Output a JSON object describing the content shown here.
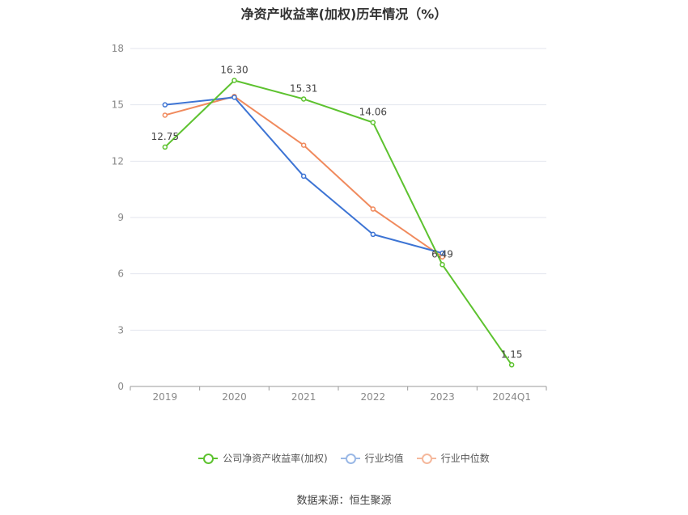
{
  "chart_data": {
    "type": "line",
    "title": "净资产收益率(加权)历年情况（%）",
    "categories": [
      "2019",
      "2020",
      "2021",
      "2022",
      "2023",
      "2024Q1"
    ],
    "ylim": [
      0,
      18
    ],
    "yticks": [
      "0",
      "3",
      "6",
      "9",
      "12",
      "15",
      "18"
    ],
    "grid": true,
    "legend_position": "bottom",
    "series": [
      {
        "name": "公司净资产收益率(加权)",
        "color": "#5dc22f",
        "values": [
          12.75,
          16.3,
          15.31,
          14.06,
          6.49,
          1.15
        ],
        "labels": [
          "12.75",
          "16.30",
          "15.31",
          "14.06",
          "6.49",
          "1.15"
        ]
      },
      {
        "name": "行业均值",
        "color": "#3d74d4",
        "values": [
          15.0,
          15.4,
          11.2,
          8.1,
          7.1,
          null
        ]
      },
      {
        "name": "行业中位数",
        "color": "#f08a5d",
        "values": [
          14.45,
          15.45,
          12.85,
          9.45,
          6.9,
          null
        ]
      }
    ]
  },
  "source": "数据来源：恒生聚源"
}
